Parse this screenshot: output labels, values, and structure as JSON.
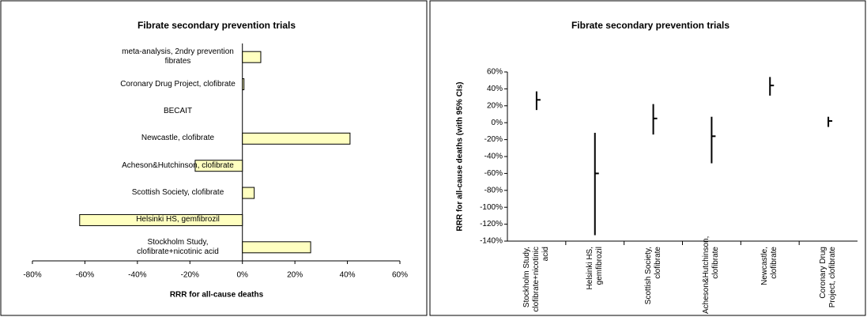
{
  "chart_data": [
    {
      "type": "hbar",
      "title": "Fibrate secondary prevention trials",
      "xlabel": "RRR for all-cause deaths",
      "categories": [
        "Stockholm Study, clofibrate+nicotinic acid",
        "Helsinki HS, gemfibrozil",
        "Scottish Society, clofibrate",
        "Acheson&Hutchinson, clofibrate",
        "Newcastle, clofibrate",
        "BECAIT",
        "Coronary Drug Project, clofibrate",
        "meta-analysis, 2ndry prevention fibrates"
      ],
      "values": [
        26,
        -62,
        4.5,
        -18,
        41,
        0,
        0.6,
        7
      ],
      "color": "#ffffc0",
      "xlim": [
        -80,
        60
      ],
      "xticks": [
        {
          "value": -80,
          "label": "-80%"
        },
        {
          "value": -60,
          "label": "-60%"
        },
        {
          "value": -40,
          "label": "-40%"
        },
        {
          "value": -20,
          "label": "-20%"
        },
        {
          "value": 0,
          "label": "0%"
        },
        {
          "value": 20,
          "label": "20%"
        },
        {
          "value": 40,
          "label": "40%"
        },
        {
          "value": 60,
          "label": "60%"
        }
      ]
    },
    {
      "type": "errorbar",
      "title": "Fibrate secondary prevention trials",
      "ylabel": "RRR for all-cause deaths (with 95% CIs)",
      "categories": [
        "Stockholm Study, clofibrate+nicotinic acid",
        "Helsinki HS, gemfibrozil",
        "Scottish Society, clofibrate",
        "Acheson&Hutchinson, clofibrate",
        "Newcastle, clofibrate",
        "Coronary Drug Project, clofibrate"
      ],
      "values": [
        27,
        -60,
        5,
        -16,
        44,
        2
      ],
      "lower": [
        15,
        -133,
        -14,
        -48,
        32,
        -5
      ],
      "upper": [
        37,
        -12,
        22,
        7,
        54,
        7
      ],
      "color": "#000000",
      "ylim": [
        -140,
        60
      ],
      "yticks": [
        {
          "value": -140,
          "label": "-140%"
        },
        {
          "value": -120,
          "label": "-120%"
        },
        {
          "value": -100,
          "label": "-100%"
        },
        {
          "value": -80,
          "label": "-80%"
        },
        {
          "value": -60,
          "label": "-60%"
        },
        {
          "value": -40,
          "label": "-40%"
        },
        {
          "value": -20,
          "label": "-20%"
        },
        {
          "value": 0,
          "label": "0%"
        },
        {
          "value": 20,
          "label": "20%"
        },
        {
          "value": 40,
          "label": "40%"
        },
        {
          "value": 60,
          "label": "60%"
        }
      ]
    }
  ]
}
